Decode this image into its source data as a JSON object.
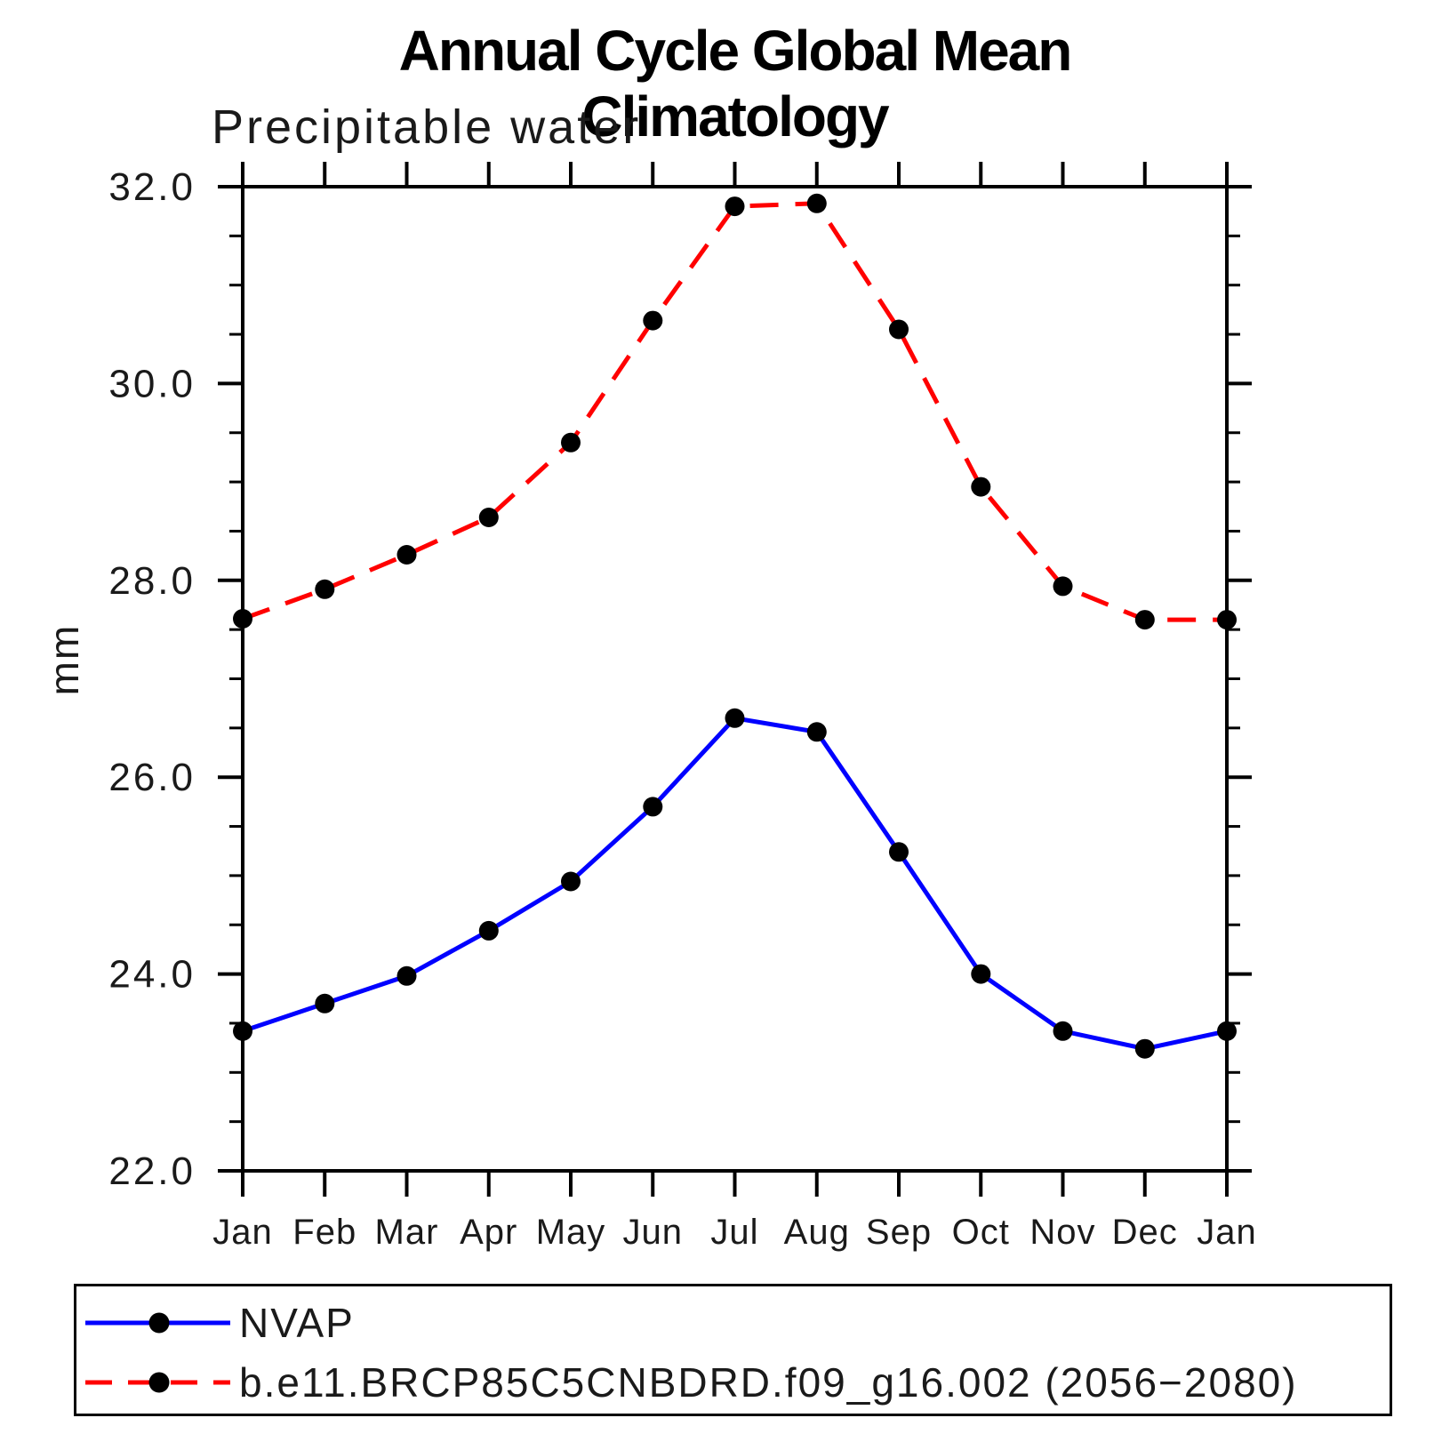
{
  "chart_data": {
    "type": "line",
    "title": "Annual Cycle Global Mean Climatology",
    "subtitle": "Precipitable water",
    "ylabel": "mm",
    "categories": [
      "Jan",
      "Feb",
      "Mar",
      "Apr",
      "May",
      "Jun",
      "Jul",
      "Aug",
      "Sep",
      "Oct",
      "Nov",
      "Dec",
      "Jan"
    ],
    "ylim": [
      22.0,
      32.0
    ],
    "yticks": [
      {
        "value": 22.0,
        "label": "22.0"
      },
      {
        "value": 24.0,
        "label": "24.0"
      },
      {
        "value": 26.0,
        "label": "26.0"
      },
      {
        "value": 28.0,
        "label": "28.0"
      },
      {
        "value": 30.0,
        "label": "30.0"
      },
      {
        "value": 32.0,
        "label": "32.0"
      }
    ],
    "ytick_minor_step": 0.5,
    "grid": false,
    "legend_position": "bottom-left",
    "axis_color": "#000000",
    "marker_color": "#000000",
    "series": [
      {
        "name": "NVAP",
        "color": "#0000ff",
        "line_style": "solid",
        "marker": "circle",
        "values": [
          23.42,
          23.7,
          23.98,
          24.44,
          24.94,
          25.7,
          26.6,
          26.46,
          25.24,
          24.0,
          23.42,
          23.24,
          23.42
        ]
      },
      {
        "name": "b.e11.BRCP85C5CNBDRD.f09_g16.002 (2056−2080)",
        "color": "#ff0000",
        "line_style": "dashed",
        "marker": "circle",
        "values": [
          27.61,
          27.91,
          28.26,
          28.64,
          29.4,
          30.64,
          31.8,
          31.83,
          30.55,
          28.95,
          27.94,
          27.6,
          27.6
        ]
      }
    ]
  }
}
